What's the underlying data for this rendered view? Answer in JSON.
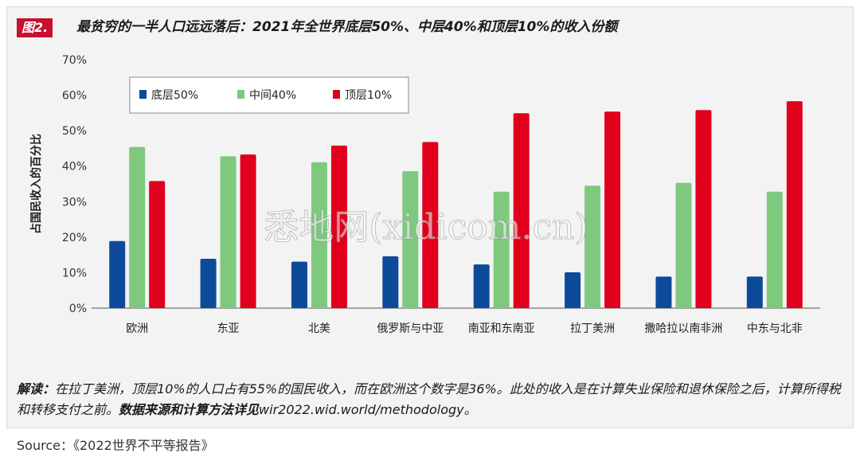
{
  "figure": {
    "tag": "图2.",
    "title": "最贫穷的一半人口远远落后：2021年全世界底层50%、中层40%和顶层10%的收入份额"
  },
  "watermark": "悉地网(xidicom.cn)",
  "note": {
    "label": "解读：",
    "text": "在拉丁美洲，顶层10%的人口占有55%的国民收入，而在欧洲这个数字是36%。此处的收入是在计算失业保险和退休保险之后，计算所得税和转移支付之前。",
    "bold": "数据来源和计算方法详见",
    "link": "wir2022.wid.world/methodology。"
  },
  "source": "Source：《2022世界不平等报告》",
  "chart_data": {
    "type": "bar",
    "ylabel": "占国民收入的百分比",
    "xlabel": "",
    "ylim": [
      0,
      70
    ],
    "yticks": [
      "0%",
      "10%",
      "20%",
      "30%",
      "40%",
      "50%",
      "60%",
      "70%"
    ],
    "categories": [
      "欧洲",
      "东亚",
      "北美",
      "俄罗斯与中亚",
      "南亚和东南亚",
      "拉丁美洲",
      "撒哈拉以南非洲",
      "中东与北非"
    ],
    "series": [
      {
        "name": "底层50%",
        "color": "#0d4a9a",
        "values": [
          18.9,
          13.9,
          13.1,
          14.6,
          12.3,
          10.1,
          8.9,
          8.9
        ]
      },
      {
        "name": "中间40%",
        "color": "#7fc97f",
        "values": [
          45.4,
          42.8,
          41.1,
          38.6,
          32.8,
          34.5,
          35.3,
          32.8
        ]
      },
      {
        "name": "顶层10%",
        "color": "#e0001b",
        "values": [
          35.8,
          43.3,
          45.8,
          46.8,
          54.9,
          55.4,
          55.8,
          58.3
        ]
      }
    ],
    "grid": false,
    "legend": "top-left"
  }
}
